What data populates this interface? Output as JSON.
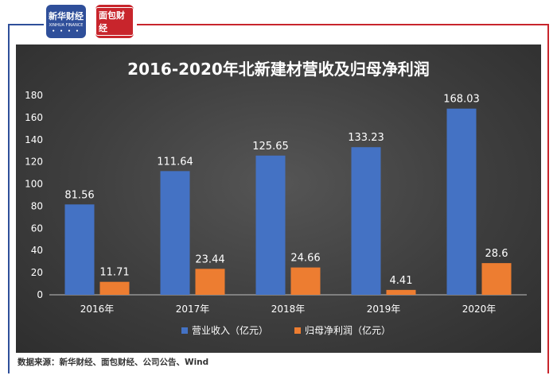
{
  "logos": {
    "xinhua": {
      "name": "新华财经",
      "sub": "XINHUA FINANCE"
    },
    "mianbao": {
      "name": "面包财经"
    }
  },
  "source_text": "数据来源：新华财经、面包财经、公司公告、Wind",
  "colors": {
    "revenue": "#4472c4",
    "profit": "#ed7d31",
    "frame_blue": "#2f4f9a",
    "frame_red": "#c8252c"
  },
  "chart_data": {
    "type": "bar",
    "title": "2016-2020年北新建材营收及归母净利润",
    "categories": [
      "2016年",
      "2017年",
      "2018年",
      "2019年",
      "2020年"
    ],
    "series": [
      {
        "name": "营业收入（亿元）",
        "values": [
          81.56,
          111.64,
          125.65,
          133.23,
          168.03
        ],
        "labels": [
          "81.56",
          "111.64",
          "125.65",
          "133.23",
          "168.03"
        ]
      },
      {
        "name": "归母净利润（亿元）",
        "values": [
          11.71,
          23.44,
          24.66,
          4.41,
          28.6
        ],
        "labels": [
          "11.71",
          "23.44",
          "24.66",
          "4.41",
          "28.6"
        ]
      }
    ],
    "ylim": [
      0,
      180
    ],
    "yticks": [
      0,
      20,
      40,
      60,
      80,
      100,
      120,
      140,
      160,
      180
    ],
    "grid": false,
    "legend": "bottom"
  }
}
